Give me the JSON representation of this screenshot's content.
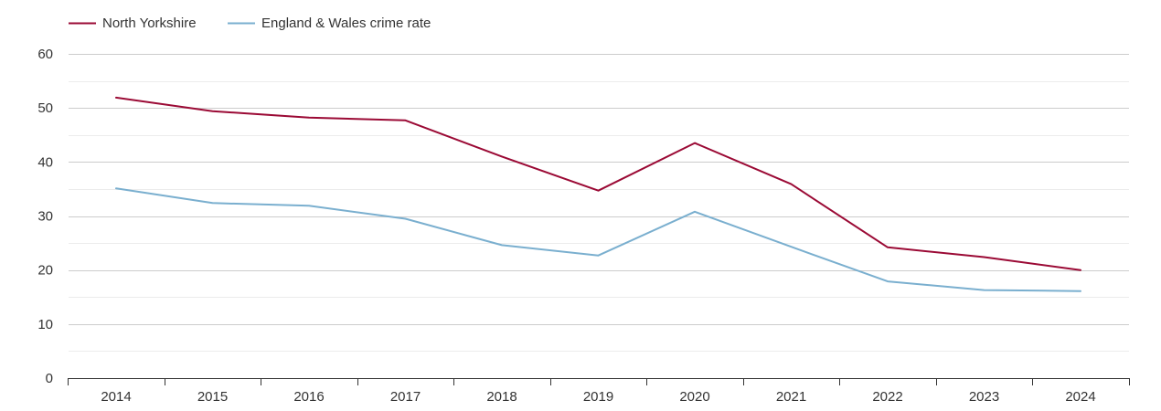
{
  "chart_data": {
    "type": "line",
    "title": "",
    "xlabel": "",
    "ylabel": "",
    "x": [
      "2014",
      "2015",
      "2016",
      "2017",
      "2018",
      "2019",
      "2020",
      "2021",
      "2022",
      "2023",
      "2024"
    ],
    "y_ticks": [
      "0",
      "10",
      "20",
      "30",
      "40",
      "50",
      "60"
    ],
    "ylim": [
      0,
      60
    ],
    "grid": true,
    "minor_grid": true,
    "legend_position": "top-left",
    "series": [
      {
        "name": "North Yorkshire",
        "color": "#9b0a35",
        "values": [
          51.9,
          49.4,
          48.2,
          47.7,
          41.0,
          34.7,
          43.5,
          35.9,
          24.2,
          22.4,
          20.0
        ]
      },
      {
        "name": "England & Wales crime rate",
        "color": "#7aafcf",
        "values": [
          35.1,
          32.4,
          31.9,
          29.5,
          24.6,
          22.7,
          30.8,
          24.3,
          17.9,
          16.3,
          16.1
        ]
      }
    ]
  }
}
